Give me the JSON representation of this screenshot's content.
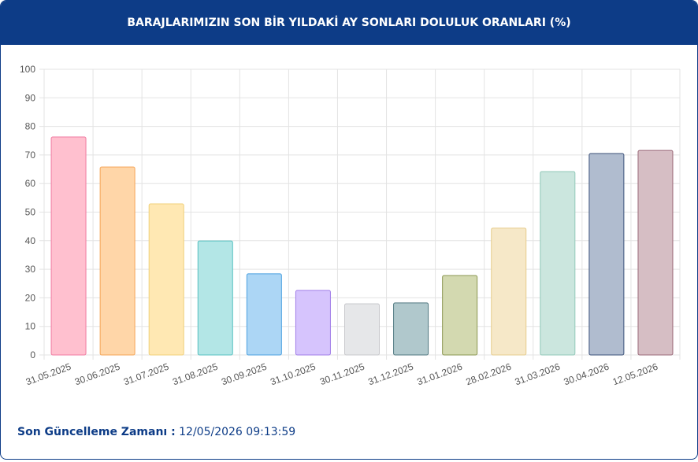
{
  "header": {
    "title": "BARAJLARIMIZIN SON BİR YILDAKİ AY SONLARI DOLULUK ORANLARI (%)"
  },
  "chart_data": {
    "type": "bar",
    "categories": [
      "31.05.2025",
      "30.06.2025",
      "31.07.2025",
      "31.08.2025",
      "30.09.2025",
      "31.10.2025",
      "30.11.2025",
      "31.12.2025",
      "31.01.2026",
      "28.02.2026",
      "31.03.2026",
      "30.04.2026",
      "12.05.2026"
    ],
    "values": [
      76.3,
      65.8,
      52.9,
      39.9,
      28.4,
      22.6,
      17.9,
      18.2,
      27.8,
      44.4,
      64.2,
      70.5,
      71.6
    ],
    "colors": [
      "#ffc0cf",
      "#ffd6a8",
      "#ffe8b3",
      "#b3e6e6",
      "#acd6f5",
      "#d6c4fd",
      "#e6e7e9",
      "#b0c8cc",
      "#d3d9b0",
      "#f6e8c8",
      "#cbe6de",
      "#b0bccf",
      "#d6bec4"
    ],
    "border_colors": [
      "#f07aa0",
      "#f5a455",
      "#f0d078",
      "#55c0c0",
      "#4aa0e0",
      "#a07ce8",
      "#c8c8cc",
      "#507880",
      "#8a9650",
      "#e6cc8c",
      "#90c8b8",
      "#3a5078",
      "#9a6878"
    ],
    "ylim": [
      0,
      100
    ],
    "yticks": [
      0,
      10,
      20,
      30,
      40,
      50,
      60,
      70,
      80,
      90,
      100
    ],
    "grid": true
  },
  "footer": {
    "label": "Son Güncelleme Zamanı :",
    "value": "12/05/2026 09:13:59"
  }
}
